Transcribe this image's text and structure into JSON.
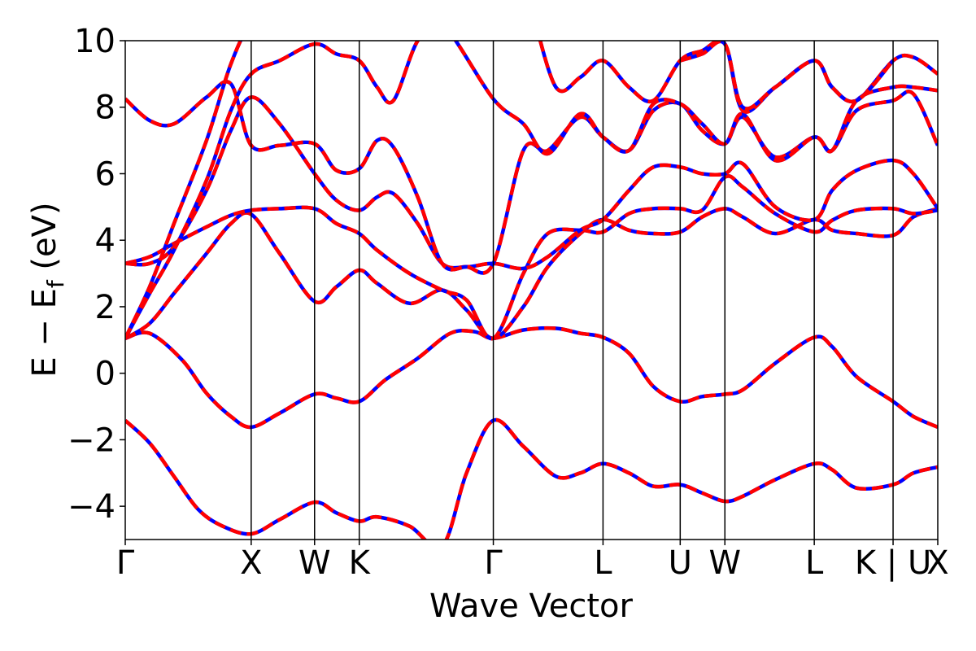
{
  "chart_data": {
    "type": "line",
    "title": "",
    "xlabel": "Wave Vector",
    "ylabel_main": "E − E",
    "ylabel_sub": "f",
    "ylabel_unit": " (eV)",
    "ylim": [
      -5,
      10
    ],
    "yticks": [
      {
        "value": 10,
        "label": "10"
      },
      {
        "value": 8,
        "label": "8"
      },
      {
        "value": 6,
        "label": "6"
      },
      {
        "value": 4,
        "label": "4"
      },
      {
        "value": 2,
        "label": "2"
      },
      {
        "value": 0,
        "label": "0"
      },
      {
        "value": -2,
        "label": "−2"
      },
      {
        "value": -4,
        "label": "−4"
      }
    ],
    "xlim": [
      0,
      1
    ],
    "kpoints": [
      {
        "label": "Γ",
        "x": 0.0
      },
      {
        "label": "X",
        "x": 0.155
      },
      {
        "label": "W",
        "x": 0.233
      },
      {
        "label": "K",
        "x": 0.288
      },
      {
        "label": "Γ",
        "x": 0.453
      },
      {
        "label": "L",
        "x": 0.588
      },
      {
        "label": "U",
        "x": 0.683
      },
      {
        "label": "W",
        "x": 0.738
      },
      {
        "label": "L",
        "x": 0.848
      },
      {
        "label": "K | U",
        "x": 0.945
      },
      {
        "label": "X",
        "x": 1.0
      }
    ],
    "style": {
      "line_colors": [
        "#0000ff",
        "#ff0000"
      ],
      "dashed_overlay": true
    },
    "bands": [
      {
        "x": [
          0.0,
          0.03,
          0.06,
          0.09,
          0.12,
          0.155,
          0.19,
          0.233,
          0.26,
          0.288,
          0.31,
          0.35,
          0.39,
          0.42,
          0.453,
          0.49,
          0.53,
          0.56,
          0.588,
          0.62,
          0.65,
          0.683,
          0.71,
          0.738,
          0.76,
          0.8,
          0.848,
          0.87,
          0.9,
          0.945,
          0.97,
          1.0
        ],
        "y": [
          -1.42,
          -2.1,
          -3.1,
          -4.1,
          -4.6,
          -4.83,
          -4.4,
          -3.88,
          -4.2,
          -4.45,
          -4.32,
          -4.6,
          -5.2,
          -3.0,
          -1.42,
          -2.2,
          -3.1,
          -3.0,
          -2.72,
          -3.0,
          -3.4,
          -3.35,
          -3.6,
          -3.85,
          -3.7,
          -3.2,
          -2.72,
          -2.9,
          -3.45,
          -3.35,
          -3.0,
          -2.82
        ]
      },
      {
        "x": [
          0.0,
          0.03,
          0.07,
          0.1,
          0.13,
          0.155,
          0.19,
          0.233,
          0.26,
          0.288,
          0.32,
          0.36,
          0.4,
          0.43,
          0.453,
          0.49,
          0.53,
          0.56,
          0.588,
          0.62,
          0.65,
          0.683,
          0.71,
          0.738,
          0.76,
          0.8,
          0.848,
          0.87,
          0.9,
          0.945,
          0.97,
          1.0
        ],
        "y": [
          1.05,
          1.2,
          0.4,
          -0.6,
          -1.3,
          -1.62,
          -1.2,
          -0.63,
          -0.75,
          -0.85,
          -0.2,
          0.45,
          1.2,
          1.25,
          1.05,
          1.3,
          1.35,
          1.2,
          1.08,
          0.6,
          -0.4,
          -0.85,
          -0.7,
          -0.63,
          -0.5,
          0.3,
          1.08,
          0.8,
          -0.1,
          -0.85,
          -1.3,
          -1.62
        ]
      },
      {
        "x": [
          0.0,
          0.03,
          0.06,
          0.1,
          0.13,
          0.155,
          0.19,
          0.233,
          0.26,
          0.288,
          0.31,
          0.35,
          0.39,
          0.42,
          0.453,
          0.49,
          0.52,
          0.56,
          0.588,
          0.62,
          0.65,
          0.683,
          0.71,
          0.738,
          0.76,
          0.8,
          0.848,
          0.87,
          0.9,
          0.945,
          0.97,
          1.0
        ],
        "y": [
          1.05,
          1.5,
          2.4,
          3.6,
          4.5,
          4.78,
          3.6,
          2.16,
          2.6,
          3.1,
          2.7,
          2.1,
          2.5,
          1.9,
          1.05,
          2.0,
          3.2,
          4.2,
          4.62,
          4.3,
          4.2,
          4.25,
          4.7,
          4.95,
          4.7,
          4.2,
          4.62,
          4.3,
          4.2,
          4.15,
          4.7,
          4.95
        ]
      },
      {
        "x": [
          0.0,
          0.03,
          0.06,
          0.1,
          0.13,
          0.155,
          0.19,
          0.233,
          0.26,
          0.288,
          0.31,
          0.35,
          0.39,
          0.42,
          0.453,
          0.49,
          0.52,
          0.56,
          0.588,
          0.62,
          0.65,
          0.683,
          0.71,
          0.738,
          0.76,
          0.8,
          0.848,
          0.87,
          0.9,
          0.945,
          0.97,
          1.0
        ],
        "y": [
          3.3,
          3.5,
          3.9,
          4.4,
          4.75,
          4.9,
          4.95,
          4.95,
          4.5,
          4.2,
          3.7,
          3.0,
          2.5,
          2.2,
          1.05,
          3.0,
          4.2,
          4.3,
          4.25,
          4.8,
          4.95,
          4.95,
          4.9,
          5.9,
          5.6,
          4.8,
          4.25,
          4.6,
          4.9,
          4.95,
          4.8,
          4.9
        ]
      },
      {
        "x": [
          0.0,
          0.03,
          0.06,
          0.1,
          0.13,
          0.155,
          0.19,
          0.233,
          0.26,
          0.288,
          0.31,
          0.33,
          0.36,
          0.39,
          0.42,
          0.453,
          0.49,
          0.52,
          0.56,
          0.588,
          0.62,
          0.65,
          0.683,
          0.71,
          0.738,
          0.76,
          0.8,
          0.848,
          0.87,
          0.9,
          0.945,
          0.97,
          1.0
        ],
        "y": [
          3.3,
          3.3,
          3.8,
          5.5,
          7.3,
          8.3,
          7.5,
          6.0,
          5.2,
          4.9,
          5.3,
          5.4,
          4.5,
          3.3,
          3.2,
          3.3,
          3.15,
          3.5,
          4.3,
          4.62,
          5.5,
          6.2,
          6.2,
          6.0,
          6.0,
          6.3,
          5.0,
          4.62,
          5.5,
          6.1,
          6.4,
          6.0,
          4.95
        ]
      },
      {
        "x": [
          0.0,
          0.03,
          0.06,
          0.1,
          0.13,
          0.155,
          0.19,
          0.233,
          0.26,
          0.288,
          0.31,
          0.33,
          0.36,
          0.39,
          0.42,
          0.453,
          0.49,
          0.52,
          0.56,
          0.588,
          0.62,
          0.65,
          0.683,
          0.71,
          0.738,
          0.76,
          0.8,
          0.848,
          0.87,
          0.9,
          0.945,
          0.97,
          1.0
        ],
        "y": [
          8.25,
          7.6,
          7.5,
          8.3,
          8.7,
          6.85,
          6.85,
          6.9,
          6.1,
          6.15,
          7.0,
          6.8,
          5.3,
          3.3,
          3.2,
          3.3,
          6.7,
          6.7,
          7.7,
          7.1,
          6.7,
          7.9,
          8.1,
          7.3,
          6.9,
          7.7,
          6.5,
          7.1,
          6.7,
          7.9,
          8.2,
          8.4,
          6.85
        ]
      },
      {
        "x": [
          0.0,
          0.03,
          0.06,
          0.1,
          0.13,
          0.155,
          0.19,
          0.233,
          0.26,
          0.288,
          0.31,
          0.33,
          0.36,
          0.39,
          0.453,
          0.49,
          0.52,
          0.56,
          0.588,
          0.62,
          0.65,
          0.683,
          0.71,
          0.738,
          0.76,
          0.8,
          0.848,
          0.87,
          0.9,
          0.945,
          0.97,
          1.0
        ],
        "y": [
          1.05,
          2.4,
          3.7,
          5.8,
          7.9,
          9.0,
          9.4,
          9.9,
          9.6,
          9.4,
          8.6,
          8.2,
          10.0,
          10.5,
          8.25,
          7.5,
          6.6,
          7.8,
          7.1,
          6.7,
          8.1,
          8.1,
          7.5,
          6.9,
          7.8,
          6.4,
          7.1,
          6.7,
          8.2,
          8.6,
          8.6,
          8.5
        ]
      },
      {
        "x": [
          0.0,
          0.03,
          0.06,
          0.1,
          0.13,
          0.155,
          0.19,
          0.233,
          0.26,
          0.288,
          0.31,
          0.35,
          0.39,
          0.45
        ],
        "y": [
          1.05,
          2.6,
          4.5,
          7.0,
          9.3,
          10.5,
          11.0,
          11.0,
          11.0,
          11.0,
          11.0,
          11.0,
          11.0,
          11.0
        ]
      },
      {
        "x": [
          0.5,
          0.53,
          0.56,
          0.588,
          0.62,
          0.65,
          0.683,
          0.71,
          0.738,
          0.76,
          0.8,
          0.848,
          0.87,
          0.9,
          0.945,
          0.97,
          1.0
        ],
        "y": [
          11.0,
          8.6,
          8.9,
          9.4,
          8.6,
          8.2,
          9.4,
          9.7,
          9.9,
          7.9,
          8.6,
          9.4,
          8.6,
          8.2,
          9.4,
          9.5,
          9.0
        ]
      },
      {
        "x": [
          0.683,
          0.71,
          0.738,
          0.76,
          0.8,
          0.848,
          0.87,
          0.9,
          0.945
        ],
        "y": [
          9.4,
          9.6,
          9.9,
          8.0,
          8.6,
          9.4,
          8.6,
          8.2,
          9.4
        ]
      }
    ]
  }
}
